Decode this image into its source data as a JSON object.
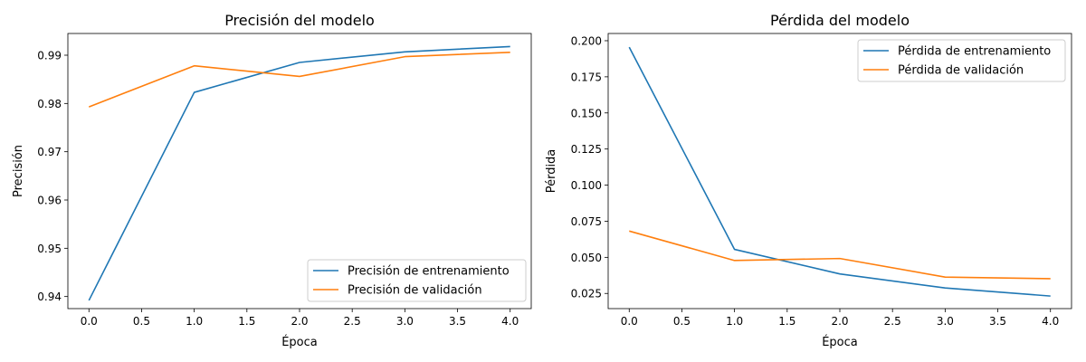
{
  "chart_data": [
    {
      "type": "line",
      "title": "Precisión del modelo",
      "xlabel": "Época",
      "ylabel": "Precisión",
      "xlim": [
        -0.2,
        4.2
      ],
      "ylim": [
        0.9375,
        0.9945
      ],
      "xticks": [
        0.0,
        0.5,
        1.0,
        1.5,
        2.0,
        2.5,
        3.0,
        3.5,
        4.0
      ],
      "xtick_labels": [
        "0.0",
        "0.5",
        "1.0",
        "1.5",
        "2.0",
        "2.5",
        "3.0",
        "3.5",
        "4.0"
      ],
      "yticks": [
        0.94,
        0.95,
        0.96,
        0.97,
        0.98,
        0.99
      ],
      "ytick_labels": [
        "0.94",
        "0.95",
        "0.96",
        "0.97",
        "0.98",
        "0.99"
      ],
      "grid": false,
      "legend_position": "lower-right",
      "x": [
        0,
        1,
        2,
        3,
        4
      ],
      "series": [
        {
          "name": "Precisión de entrenamiento",
          "color": "#1f77b4",
          "values": [
            0.9392,
            0.9823,
            0.9885,
            0.9907,
            0.9918
          ]
        },
        {
          "name": "Precisión de validación",
          "color": "#ff7f0e",
          "values": [
            0.9793,
            0.9878,
            0.9856,
            0.9897,
            0.9906
          ]
        }
      ]
    },
    {
      "type": "line",
      "title": "Pérdida del modelo",
      "xlabel": "Época",
      "ylabel": "Pérdida",
      "xlim": [
        -0.2,
        4.2
      ],
      "ylim": [
        0.0145,
        0.205
      ],
      "xticks": [
        0.0,
        0.5,
        1.0,
        1.5,
        2.0,
        2.5,
        3.0,
        3.5,
        4.0
      ],
      "xtick_labels": [
        "0.0",
        "0.5",
        "1.0",
        "1.5",
        "2.0",
        "2.5",
        "3.0",
        "3.5",
        "4.0"
      ],
      "yticks": [
        0.025,
        0.05,
        0.075,
        0.1,
        0.125,
        0.15,
        0.175,
        0.2
      ],
      "ytick_labels": [
        "0.025",
        "0.050",
        "0.075",
        "0.100",
        "0.125",
        "0.150",
        "0.175",
        "0.200"
      ],
      "grid": false,
      "legend_position": "upper-right",
      "x": [
        0,
        1,
        2,
        3,
        4
      ],
      "series": [
        {
          "name": "Pérdida de entrenamiento",
          "color": "#1f77b4",
          "values": [
            0.1955,
            0.0555,
            0.0385,
            0.0288,
            0.0232
          ]
        },
        {
          "name": "Pérdida de validación",
          "color": "#ff7f0e",
          "values": [
            0.0682,
            0.0478,
            0.0492,
            0.0363,
            0.0352
          ]
        }
      ]
    }
  ]
}
